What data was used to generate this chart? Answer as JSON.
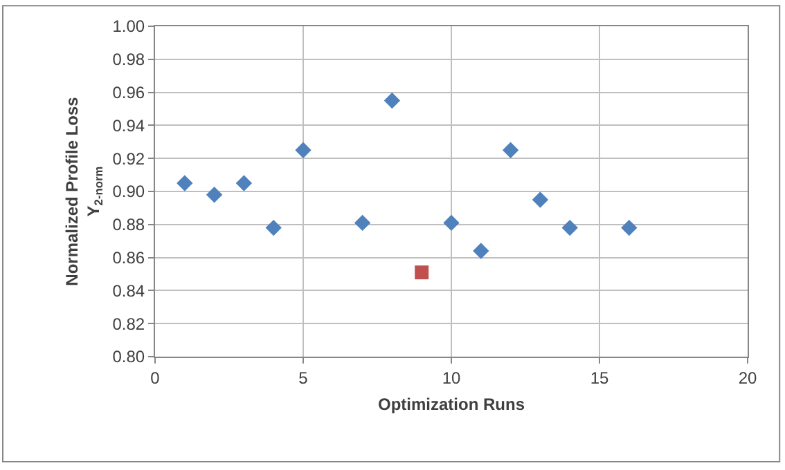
{
  "chart_data": {
    "type": "scatter",
    "xlabel": "Optimization Runs",
    "ylabel": "Normalized Profile Loss\nY$_{2-norm}$",
    "series": [
      {
        "color": "#4f81bd",
        "marker": "diamond",
        "x": [
          1,
          2,
          3,
          4,
          5,
          7,
          8,
          10,
          11,
          12,
          13,
          14,
          16
        ],
        "values": [
          0.905,
          0.898,
          0.905,
          0.878,
          0.925,
          0.881,
          0.955,
          0.881,
          0.864,
          0.925,
          0.895,
          0.878,
          0.878
        ]
      },
      {
        "color": "#c0504d",
        "marker": "square",
        "x": [
          9
        ],
        "values": [
          0.851
        ]
      }
    ],
    "xlim": [
      0,
      20
    ],
    "xticks": [
      0,
      5,
      10,
      15,
      20
    ],
    "ylim": [
      0.8,
      1.0
    ],
    "yticks": [
      {
        "value": 0.8,
        "label": "0.80"
      },
      {
        "value": 0.82,
        "label": "0.82"
      },
      {
        "value": 0.84,
        "label": "0.84"
      },
      {
        "value": 0.86,
        "label": "0.86"
      },
      {
        "value": 0.88,
        "label": "0.88"
      },
      {
        "value": 0.9,
        "label": "0.90"
      },
      {
        "value": 0.92,
        "label": "0.92"
      },
      {
        "value": 0.94,
        "label": "0.94"
      },
      {
        "value": 0.96,
        "label": "0.96"
      },
      {
        "value": 0.98,
        "label": "0.98"
      },
      {
        "value": 1.0,
        "label": "1.00"
      }
    ],
    "grid": true
  }
}
